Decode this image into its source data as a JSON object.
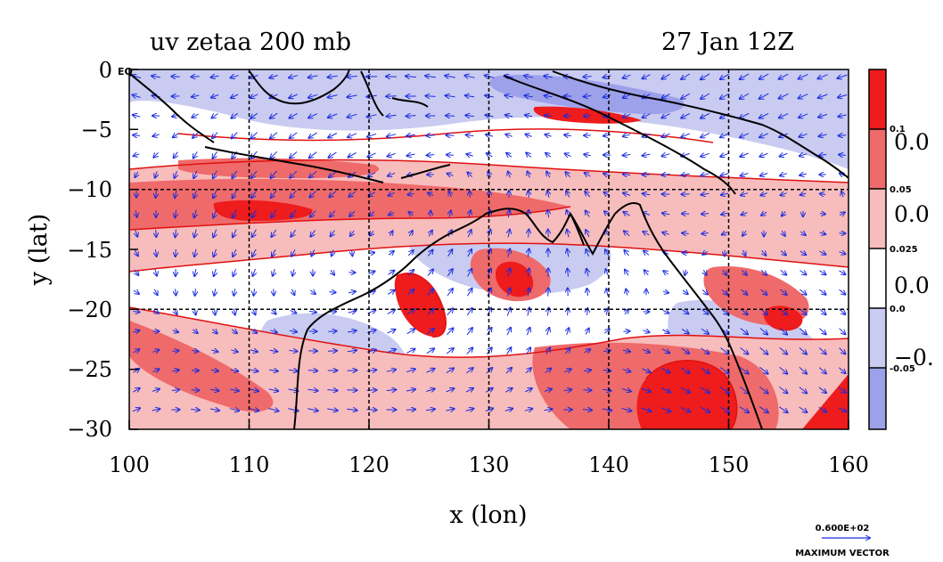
{
  "header": {
    "title_left": "uv zetaa 200 mb",
    "title_right": "27 Jan 12Z"
  },
  "axes": {
    "xlabel": "x (lon)",
    "ylabel": "y (lat)",
    "xlim": [
      100,
      160
    ],
    "ylim": [
      -30,
      0
    ],
    "x_ticks": [
      "100",
      "110",
      "120",
      "130",
      "140",
      "150",
      "160"
    ],
    "y_ticks": [
      "0",
      "−5",
      "−10",
      "−15",
      "−20",
      "−25",
      "−30"
    ],
    "corner_label": "EQ",
    "grid": true
  },
  "colorbar": {
    "levels": [
      "0.1",
      "0.05",
      "0.025",
      "0.0",
      "-0.05"
    ],
    "big_labels": [
      "0.0",
      "0.0",
      "0.0",
      "−0."
    ],
    "colors": [
      "#ee1c1c",
      "#ef6a6a",
      "#f7bcbc",
      "#ffffff",
      "#c9cbf1",
      "#9da1ea"
    ]
  },
  "vector_key": {
    "value": "0.600E+02",
    "label": "MAXIMUM VECTOR"
  },
  "colors": {
    "positive_strong": "#ee1c1c",
    "positive_mid": "#ef6a6a",
    "positive_weak": "#f7bcbc",
    "negative_weak": "#c9cbf1",
    "negative_strong": "#9da1ea",
    "contour_line": "#e01010",
    "vectors": "#1a2be0",
    "coastline": "#000000"
  },
  "icons": {
    "wind_vectors": "arrow-icon",
    "coastlines": "coastline-icon"
  }
}
